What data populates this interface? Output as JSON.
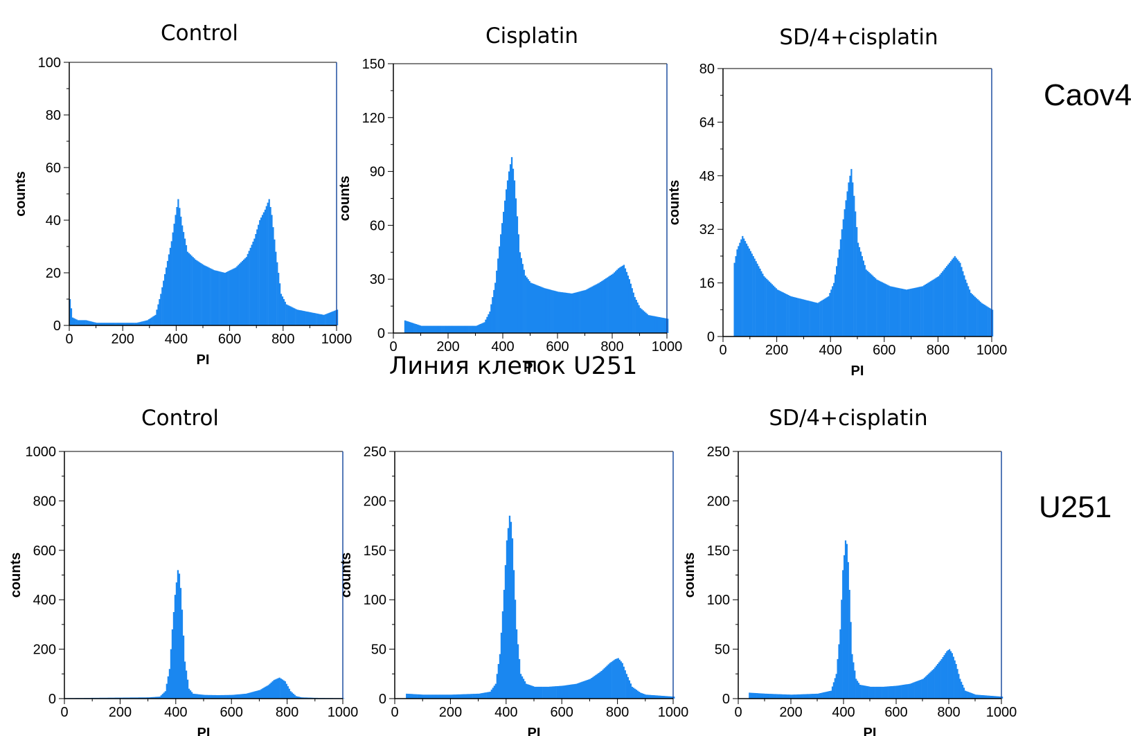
{
  "row_labels": {
    "top": "Caov4",
    "bottom": "U251"
  },
  "caption": "Линия клеток U251",
  "colors": {
    "bar": "#1a87f0",
    "axis": "#000000",
    "frame": "#1f4fa0"
  },
  "chart_data": [
    {
      "type": "bar",
      "title": "Control",
      "xlabel": "PI",
      "ylabel": "counts",
      "xlim": [
        0,
        1000
      ],
      "ylim": [
        0,
        100
      ],
      "xticks": [
        0,
        200,
        400,
        600,
        800,
        1000
      ],
      "yticks": [
        0,
        20,
        40,
        60,
        80,
        100
      ],
      "series": [
        {
          "x": [
            0,
            10,
            30,
            60,
            100,
            150,
            200,
            250,
            290,
            320,
            340,
            360,
            380,
            395,
            405,
            420,
            440,
            470,
            500,
            540,
            580,
            620,
            660,
            690,
            710,
            730,
            745,
            755,
            770,
            790,
            810,
            850,
            900,
            950,
            1000
          ],
          "y": [
            10,
            3,
            2,
            2,
            1,
            1,
            1,
            1,
            2,
            4,
            12,
            22,
            32,
            42,
            48,
            38,
            28,
            25,
            23,
            21,
            20,
            22,
            26,
            33,
            40,
            44,
            48,
            42,
            28,
            12,
            8,
            6,
            5,
            4,
            6
          ]
        }
      ]
    },
    {
      "type": "bar",
      "title": "Cisplatin",
      "xlabel": "PI",
      "ylabel": "counts",
      "xlim": [
        0,
        1000
      ],
      "ylim": [
        0,
        150
      ],
      "xticks": [
        0,
        200,
        400,
        600,
        800,
        1000
      ],
      "yticks": [
        0,
        30,
        60,
        90,
        120,
        150
      ],
      "series": [
        {
          "x": [
            40,
            60,
            100,
            150,
            200,
            250,
            300,
            330,
            350,
            370,
            390,
            410,
            420,
            430,
            440,
            450,
            460,
            480,
            500,
            550,
            600,
            650,
            700,
            750,
            780,
            800,
            820,
            840,
            860,
            880,
            900,
            930,
            1000
          ],
          "y": [
            7,
            6,
            4,
            4,
            4,
            4,
            4,
            6,
            12,
            28,
            55,
            80,
            90,
            98,
            85,
            65,
            45,
            32,
            28,
            25,
            23,
            22,
            24,
            28,
            31,
            33,
            36,
            38,
            30,
            20,
            14,
            10,
            8
          ]
        }
      ]
    },
    {
      "type": "bar",
      "title": "SD/4+cisplatin",
      "xlabel": "PI",
      "ylabel": "counts",
      "xlim": [
        0,
        1000
      ],
      "ylim": [
        0,
        80
      ],
      "xticks": [
        0,
        200,
        400,
        600,
        800,
        1000
      ],
      "yticks": [
        0,
        16,
        32,
        48,
        64,
        80
      ],
      "series": [
        {
          "x": [
            40,
            50,
            70,
            90,
            110,
            150,
            200,
            250,
            300,
            350,
            390,
            410,
            430,
            450,
            465,
            475,
            485,
            500,
            530,
            570,
            620,
            680,
            740,
            800,
            830,
            860,
            880,
            900,
            920,
            960,
            1000
          ],
          "y": [
            22,
            26,
            30,
            27,
            24,
            18,
            14,
            12,
            11,
            10,
            12,
            16,
            26,
            38,
            46,
            50,
            42,
            28,
            20,
            17,
            15,
            14,
            15,
            18,
            21,
            24,
            22,
            17,
            13,
            10,
            8
          ]
        }
      ]
    },
    {
      "type": "bar",
      "title": "Control",
      "xlabel": "PI",
      "ylabel": "counts",
      "xlim": [
        0,
        1000
      ],
      "ylim": [
        0,
        1000
      ],
      "xticks": [
        0,
        200,
        400,
        600,
        800,
        1000
      ],
      "yticks": [
        0,
        200,
        400,
        600,
        800,
        1000
      ],
      "series": [
        {
          "x": [
            0,
            100,
            200,
            300,
            340,
            360,
            375,
            385,
            395,
            405,
            412,
            420,
            430,
            445,
            460,
            500,
            550,
            600,
            650,
            700,
            730,
            750,
            770,
            790,
            810,
            830,
            850,
            900,
            1000
          ],
          "y": [
            2,
            3,
            4,
            5,
            8,
            30,
            120,
            280,
            420,
            520,
            500,
            360,
            150,
            40,
            20,
            15,
            14,
            15,
            20,
            35,
            55,
            75,
            85,
            70,
            30,
            10,
            5,
            3,
            2
          ]
        }
      ]
    },
    {
      "type": "bar",
      "title": "",
      "xlabel": "PI",
      "ylabel": "counts",
      "xlim": [
        0,
        1000
      ],
      "ylim": [
        0,
        250
      ],
      "xticks": [
        0,
        200,
        400,
        600,
        800,
        1000
      ],
      "yticks": [
        0,
        50,
        100,
        150,
        200,
        250
      ],
      "series": [
        {
          "x": [
            40,
            100,
            200,
            300,
            340,
            360,
            375,
            390,
            400,
            410,
            418,
            425,
            435,
            450,
            470,
            500,
            550,
            600,
            650,
            700,
            740,
            770,
            790,
            800,
            815,
            830,
            850,
            880,
            900,
            950,
            1000
          ],
          "y": [
            5,
            4,
            4,
            5,
            7,
            15,
            45,
            110,
            160,
            185,
            175,
            130,
            70,
            25,
            15,
            12,
            12,
            13,
            15,
            20,
            28,
            36,
            40,
            41,
            36,
            25,
            12,
            6,
            4,
            3,
            2
          ]
        }
      ]
    },
    {
      "type": "bar",
      "title": "SD/4+cisplatin",
      "xlabel": "PI",
      "ylabel": "counts",
      "xlim": [
        0,
        1000
      ],
      "ylim": [
        0,
        250
      ],
      "xticks": [
        0,
        200,
        400,
        600,
        800,
        1000
      ],
      "yticks": [
        0,
        50,
        100,
        150,
        200,
        250
      ],
      "series": [
        {
          "x": [
            40,
            100,
            200,
            300,
            350,
            370,
            385,
            395,
            405,
            412,
            420,
            430,
            445,
            460,
            500,
            550,
            600,
            650,
            700,
            740,
            770,
            790,
            800,
            810,
            825,
            840,
            860,
            900,
            1000
          ],
          "y": [
            6,
            5,
            4,
            5,
            8,
            25,
            70,
            130,
            160,
            155,
            110,
            45,
            20,
            14,
            12,
            12,
            13,
            15,
            20,
            30,
            40,
            48,
            50,
            46,
            35,
            20,
            8,
            4,
            2
          ]
        }
      ]
    }
  ]
}
